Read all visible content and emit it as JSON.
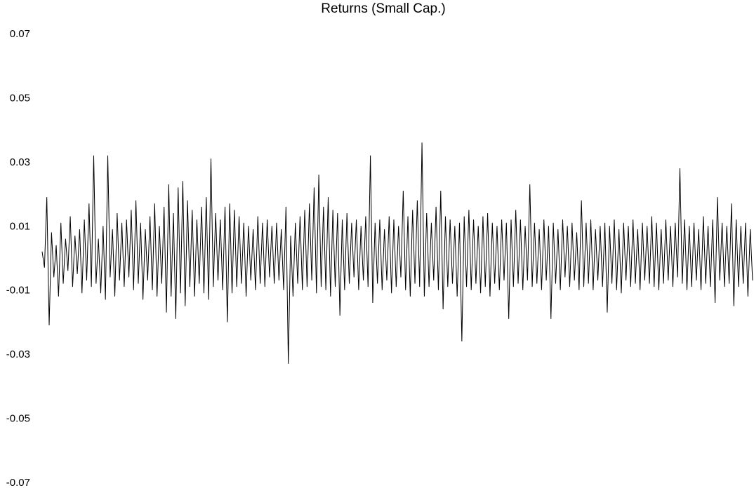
{
  "chart_data": {
    "type": "line",
    "title": "Returns (Small Cap.)",
    "xlabel": "",
    "ylabel": "",
    "ylim": [
      -0.07,
      0.07
    ],
    "y_ticks": [
      0.07,
      0.05,
      0.03,
      0.01,
      -0.01,
      -0.03,
      -0.05,
      -0.07
    ],
    "y_tick_labels": [
      "0.07",
      "0.05",
      "0.03",
      "0.01",
      "-0.01",
      "-0.03",
      "-0.05",
      "-0.07"
    ],
    "grid": false,
    "legend": "none",
    "line_color": "#000000",
    "series": [
      {
        "values": [
          0.002,
          -0.003,
          0.019,
          -0.021,
          0.008,
          -0.006,
          0.004,
          -0.012,
          0.011,
          -0.008,
          0.006,
          -0.004,
          0.013,
          -0.009,
          0.007,
          -0.005,
          0.009,
          -0.011,
          0.012,
          -0.007,
          0.017,
          -0.009,
          0.032,
          -0.008,
          0.006,
          -0.011,
          0.01,
          -0.013,
          0.032,
          -0.006,
          0.009,
          -0.012,
          0.014,
          -0.007,
          0.011,
          -0.009,
          0.012,
          -0.006,
          0.015,
          -0.01,
          0.018,
          -0.008,
          0.011,
          -0.013,
          0.009,
          -0.007,
          0.013,
          -0.01,
          0.017,
          -0.012,
          0.01,
          -0.008,
          0.016,
          -0.017,
          0.023,
          -0.012,
          0.014,
          -0.019,
          0.022,
          -0.011,
          0.024,
          -0.015,
          0.018,
          -0.009,
          0.015,
          -0.012,
          0.012,
          -0.008,
          0.016,
          -0.011,
          0.019,
          -0.013,
          0.031,
          -0.009,
          0.014,
          -0.007,
          0.012,
          -0.01,
          0.016,
          -0.02,
          0.017,
          -0.011,
          0.015,
          -0.009,
          0.013,
          -0.008,
          0.011,
          -0.012,
          0.01,
          -0.007,
          0.009,
          -0.01,
          0.013,
          -0.008,
          0.011,
          -0.009,
          0.012,
          -0.006,
          0.01,
          -0.008,
          0.011,
          -0.007,
          0.009,
          -0.01,
          0.016,
          -0.033,
          0.007,
          -0.012,
          0.011,
          -0.008,
          0.013,
          -0.01,
          0.015,
          -0.009,
          0.017,
          -0.007,
          0.022,
          -0.011,
          0.026,
          -0.009,
          0.016,
          -0.01,
          0.019,
          -0.012,
          0.015,
          -0.009,
          0.014,
          -0.018,
          0.012,
          -0.01,
          0.014,
          -0.008,
          0.011,
          -0.006,
          0.012,
          -0.01,
          0.01,
          -0.007,
          0.013,
          -0.009,
          0.032,
          -0.014,
          0.011,
          -0.008,
          0.012,
          -0.01,
          0.009,
          -0.007,
          0.013,
          -0.011,
          0.012,
          -0.009,
          0.01,
          -0.006,
          0.021,
          -0.01,
          0.013,
          -0.012,
          0.015,
          -0.008,
          0.018,
          -0.009,
          0.036,
          -0.012,
          0.014,
          -0.009,
          0.011,
          -0.007,
          0.016,
          -0.01,
          0.021,
          -0.016,
          0.013,
          -0.009,
          0.012,
          -0.008,
          0.01,
          -0.012,
          0.011,
          -0.026,
          0.013,
          -0.009,
          0.015,
          -0.01,
          0.012,
          -0.008,
          0.01,
          -0.011,
          0.013,
          -0.009,
          0.014,
          -0.012,
          0.011,
          -0.008,
          0.01,
          -0.01,
          0.012,
          -0.007,
          0.011,
          -0.019,
          0.012,
          -0.009,
          0.015,
          -0.008,
          0.012,
          -0.01,
          0.01,
          -0.007,
          0.023,
          -0.009,
          0.011,
          -0.008,
          0.009,
          -0.01,
          0.012,
          -0.007,
          0.01,
          -0.019,
          0.011,
          -0.008,
          0.009,
          -0.01,
          0.012,
          -0.006,
          0.01,
          -0.009,
          0.011,
          -0.007,
          0.008,
          -0.01,
          0.018,
          -0.009,
          0.011,
          -0.008,
          0.012,
          -0.01,
          0.009,
          -0.007,
          0.01,
          -0.009,
          0.011,
          -0.017,
          0.01,
          -0.008,
          0.012,
          -0.01,
          0.009,
          -0.011,
          0.011,
          -0.007,
          0.01,
          -0.009,
          0.012,
          -0.008,
          0.009,
          -0.01,
          0.011,
          -0.007,
          0.01,
          -0.008,
          0.013,
          -0.009,
          0.011,
          -0.01,
          0.009,
          -0.008,
          0.012,
          -0.007,
          0.01,
          -0.009,
          0.011,
          -0.006,
          0.028,
          -0.008,
          0.012,
          -0.01,
          0.01,
          -0.009,
          0.011,
          -0.007,
          0.009,
          -0.01,
          0.013,
          -0.008,
          0.01,
          -0.009,
          0.012,
          -0.014,
          0.019,
          -0.007,
          0.011,
          -0.009,
          0.01,
          -0.008,
          0.017,
          -0.015,
          0.012,
          -0.009,
          0.01,
          -0.008,
          0.011,
          -0.012,
          0.009,
          -0.007
        ]
      }
    ]
  }
}
